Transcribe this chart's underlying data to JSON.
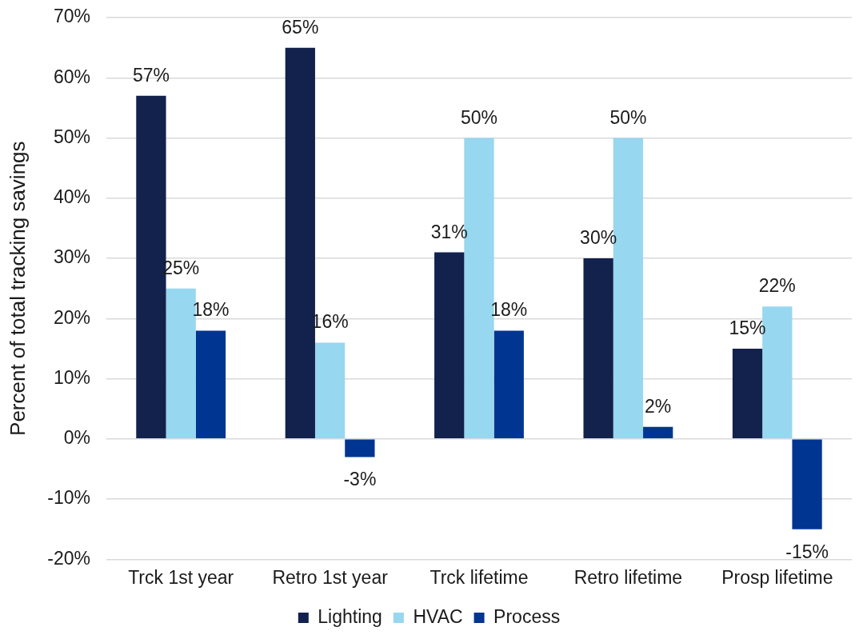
{
  "chart_data": {
    "type": "bar",
    "ylabel": "Percent of total tracking savings",
    "categories": [
      "Trck 1st year",
      "Retro 1st year",
      "Trck lifetime",
      "Retro lifetime",
      "Prosp lifetime"
    ],
    "series": [
      {
        "name": "Lighting",
        "color": "#13214d",
        "values": [
          57,
          65,
          31,
          30,
          15
        ],
        "value_labels": [
          "57%",
          "65%",
          "31%",
          "30%",
          "15%"
        ]
      },
      {
        "name": "HVAC",
        "color": "#97d7ef",
        "values": [
          25,
          16,
          50,
          50,
          22
        ],
        "value_labels": [
          "25%",
          "16%",
          "50%",
          "50%",
          "22%"
        ]
      },
      {
        "name": "Process",
        "color": "#003591",
        "values": [
          18,
          -3,
          18,
          2,
          -15
        ],
        "value_labels": [
          "18%",
          "-3%",
          "18%",
          "2%",
          "-15%"
        ]
      }
    ],
    "ylim": [
      -20,
      70
    ],
    "yticks": [
      {
        "value": -20,
        "label": "-20%"
      },
      {
        "value": -10,
        "label": "-10%"
      },
      {
        "value": 0,
        "label": "0%"
      },
      {
        "value": 10,
        "label": "10%"
      },
      {
        "value": 20,
        "label": "20%"
      },
      {
        "value": 30,
        "label": "30%"
      },
      {
        "value": 40,
        "label": "40%"
      },
      {
        "value": 50,
        "label": "50%"
      },
      {
        "value": 60,
        "label": "60%"
      },
      {
        "value": 70,
        "label": "70%"
      }
    ],
    "grid": "y",
    "legend": "bottom"
  }
}
